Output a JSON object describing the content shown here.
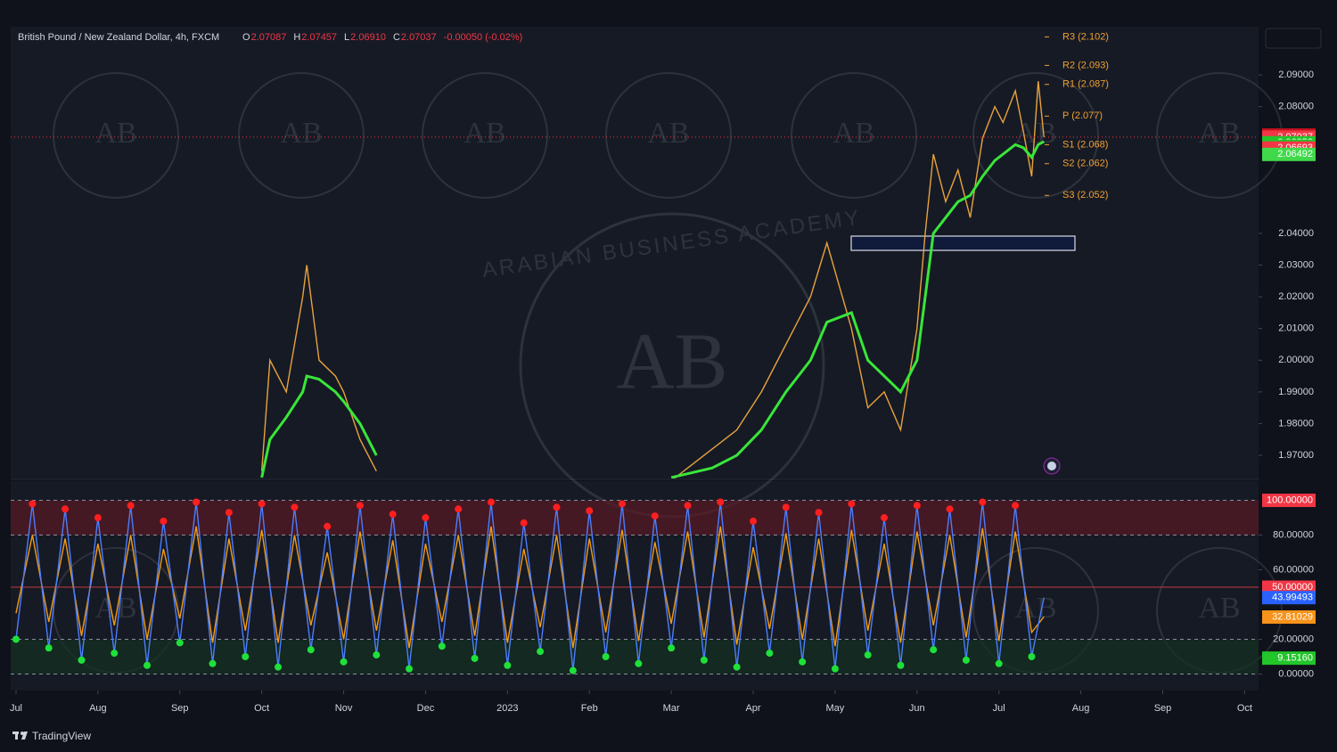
{
  "header": {
    "symbol": "British Pound / New Zealand Dollar, 4h, FXCM",
    "ohlc": [
      {
        "key": "O",
        "value": "2.07087"
      },
      {
        "key": "H",
        "value": "2.07457"
      },
      {
        "key": "L",
        "value": "2.06910"
      },
      {
        "key": "C",
        "value": "2.07037"
      }
    ],
    "change": "-0.00050 (-0.02%)"
  },
  "watermark": {
    "big": "AB",
    "ring": "ARABIAN BUSINESS ACADEMY"
  },
  "footer": {
    "brand": "TradingView"
  },
  "chart_data": [
    {
      "type": "line",
      "xlim": [
        -0.065,
        15.17
      ],
      "ylim": [
        1.9627,
        2.1052
      ],
      "yticks": [
        {
          "value": 1.97,
          "label": "1.97000"
        },
        {
          "value": 1.98,
          "label": "1.98000"
        },
        {
          "value": 1.99,
          "label": "1.99000"
        },
        {
          "value": 2.0,
          "label": "2.00000"
        },
        {
          "value": 2.01,
          "label": "2.01000"
        },
        {
          "value": 2.02,
          "label": "2.02000"
        },
        {
          "value": 2.03,
          "label": "2.03000"
        },
        {
          "value": 2.04,
          "label": "2.04000"
        },
        {
          "value": 2.08,
          "label": "2.08000"
        },
        {
          "value": 2.09,
          "label": "2.09000"
        }
      ],
      "x": [
        3.0,
        3.1,
        3.3,
        3.5,
        3.55,
        3.7,
        3.9,
        4.0,
        4.2,
        4.4,
        4.5,
        8.0,
        8.5,
        8.8,
        9.1,
        9.4,
        9.7,
        9.9,
        10.2,
        10.4,
        10.6,
        10.8,
        11.0,
        11.1,
        11.2,
        11.35,
        11.5,
        11.65,
        11.8,
        11.95,
        12.05,
        12.2,
        12.3,
        12.4,
        12.48,
        12.55
      ],
      "series": [
        {
          "color": "#e8a33c",
          "values": [
            1.965,
            2.0,
            1.99,
            2.02,
            2.03,
            2.0,
            1.995,
            1.99,
            1.975,
            1.965,
            null,
            1.962,
            1.972,
            1.978,
            1.99,
            2.005,
            2.02,
            2.037,
            2.01,
            1.985,
            1.99,
            1.978,
            2.01,
            2.04,
            2.065,
            2.05,
            2.06,
            2.045,
            2.07,
            2.08,
            2.075,
            2.085,
            2.072,
            2.058,
            2.088,
            2.07037
          ]
        },
        {
          "color": "#39e639",
          "values": [
            1.963,
            1.975,
            1.982,
            1.99,
            1.995,
            1.994,
            1.99,
            1.987,
            1.98,
            1.97,
            null,
            1.963,
            1.966,
            1.97,
            1.978,
            1.99,
            2.0,
            2.012,
            2.015,
            2.0,
            1.995,
            1.99,
            2.0,
            2.02,
            2.04,
            2.045,
            2.05,
            2.052,
            2.058,
            2.063,
            2.065,
            2.068,
            2.067,
            2.064,
            2.068,
            2.069
          ]
        }
      ],
      "pivots": [
        {
          "label": "R3 (2.102)",
          "value": 2.102
        },
        {
          "label": "R2 (2.093)",
          "value": 2.093
        },
        {
          "label": "R1 (2.087)",
          "value": 2.087
        },
        {
          "label": "P (2.077)",
          "value": 2.077
        },
        {
          "label": "S1 (2.068)",
          "value": 2.068
        },
        {
          "label": "S2 (2.062)",
          "value": 2.062
        },
        {
          "label": "S3 (2.052)",
          "value": 2.052
        }
      ],
      "pivot_color": "#f0a030",
      "price_labels": [
        {
          "value": 2.07104,
          "label": "2.07104",
          "color": "#c2111f"
        },
        {
          "value": 2.07037,
          "label": "2.07037",
          "color": "#f23645",
          "countdown": "01:36:34"
        },
        {
          "value": 2.06858,
          "label": "2.06858",
          "color": "#22c52a"
        },
        {
          "value": 2.06747,
          "label": "2.06747",
          "color": "#22c52a"
        },
        {
          "value": 2.06693,
          "label": "2.06693",
          "color": "#f23645"
        },
        {
          "value": 2.06492,
          "label": "2.06492",
          "color": "#3fd94a"
        }
      ]
    },
    {
      "type": "line",
      "xlim": [
        -0.065,
        15.17
      ],
      "ylim": [
        -9.5,
        111.06
      ],
      "yticks": [
        {
          "value": 0,
          "label": "0.00000"
        },
        {
          "value": 20,
          "label": "20.00000"
        },
        {
          "value": 60,
          "label": "60.00000"
        },
        {
          "value": 80,
          "label": "80.00000"
        }
      ],
      "xticks": [
        {
          "value": 0,
          "label": "Jul"
        },
        {
          "value": 1,
          "label": "Aug"
        },
        {
          "value": 2,
          "label": "Sep"
        },
        {
          "value": 3,
          "label": "Oct"
        },
        {
          "value": 4,
          "label": "Nov"
        },
        {
          "value": 5,
          "label": "Dec"
        },
        {
          "value": 6,
          "label": "2023"
        },
        {
          "value": 7,
          "label": "Feb"
        },
        {
          "value": 8,
          "label": "Mar"
        },
        {
          "value": 9,
          "label": "Apr"
        },
        {
          "value": 10,
          "label": "May"
        },
        {
          "value": 11,
          "label": "Jun"
        },
        {
          "value": 12,
          "label": "Jul"
        },
        {
          "value": 13,
          "label": "Aug"
        },
        {
          "value": 14,
          "label": "Sep"
        },
        {
          "value": 15,
          "label": "Oct"
        }
      ],
      "bands": [
        {
          "from": 80,
          "to": 100,
          "color": "#5a1a24"
        },
        {
          "from": 0,
          "to": 20,
          "color": "#12301f"
        }
      ],
      "levels": [
        100,
        80,
        20,
        0
      ],
      "midline": {
        "value": 50,
        "color": "#c63a3a"
      },
      "x": [
        0,
        0.2,
        0.4,
        0.6,
        0.8,
        1,
        1.2,
        1.4,
        1.6,
        1.8,
        2,
        2.2,
        2.4,
        2.6,
        2.8,
        3,
        3.2,
        3.4,
        3.6,
        3.8,
        4,
        4.2,
        4.4,
        4.6,
        4.8,
        5,
        5.2,
        5.4,
        5.6,
        5.8,
        6,
        6.2,
        6.4,
        6.6,
        6.8,
        7,
        7.2,
        7.4,
        7.6,
        7.8,
        8,
        8.2,
        8.4,
        8.6,
        8.8,
        9,
        9.2,
        9.4,
        9.6,
        9.8,
        10,
        10.2,
        10.4,
        10.6,
        10.8,
        11,
        11.2,
        11.4,
        11.6,
        11.8,
        12,
        12.2,
        12.4,
        12.55
      ],
      "series": [
        {
          "color": "#f39c12",
          "values": [
            35,
            80,
            30,
            78,
            22,
            75,
            28,
            80,
            20,
            72,
            32,
            85,
            18,
            78,
            25,
            83,
            18,
            80,
            28,
            70,
            20,
            82,
            25,
            77,
            15,
            75,
            30,
            80,
            22,
            85,
            18,
            72,
            27,
            80,
            15,
            78,
            24,
            83,
            19,
            76,
            29,
            82,
            21,
            85,
            17,
            73,
            26,
            81,
            20,
            78,
            16,
            83,
            25,
            75,
            18,
            82,
            28,
            80,
            21,
            84,
            19,
            82,
            24,
            33
          ]
        },
        {
          "color": "#4a7dff",
          "markers": true,
          "values": [
            20,
            98,
            15,
            95,
            8,
            90,
            12,
            97,
            5,
            88,
            18,
            99,
            6,
            93,
            10,
            98,
            4,
            96,
            14,
            85,
            7,
            97,
            11,
            92,
            3,
            90,
            16,
            95,
            9,
            99,
            5,
            87,
            13,
            96,
            2,
            94,
            10,
            98,
            6,
            91,
            15,
            97,
            8,
            99,
            4,
            88,
            12,
            96,
            7,
            93,
            3,
            98,
            11,
            90,
            5,
            97,
            14,
            95,
            8,
            99,
            6,
            97,
            10,
            44
          ]
        }
      ],
      "high_color": "#ff1f1f",
      "low_color": "#1fe03a",
      "price_labels": [
        {
          "value": 100,
          "label": "100.00000",
          "color": "#f23645"
        },
        {
          "value": 50,
          "label": "50.00000",
          "color": "#f23645"
        },
        {
          "value": 43.99493,
          "label": "43.99493",
          "color": "#2962ff"
        },
        {
          "value": 32.81029,
          "label": "32.81029",
          "color": "#f7931a"
        },
        {
          "value": 9.1516,
          "label": "9.15160",
          "color": "#22c52a"
        }
      ]
    }
  ]
}
